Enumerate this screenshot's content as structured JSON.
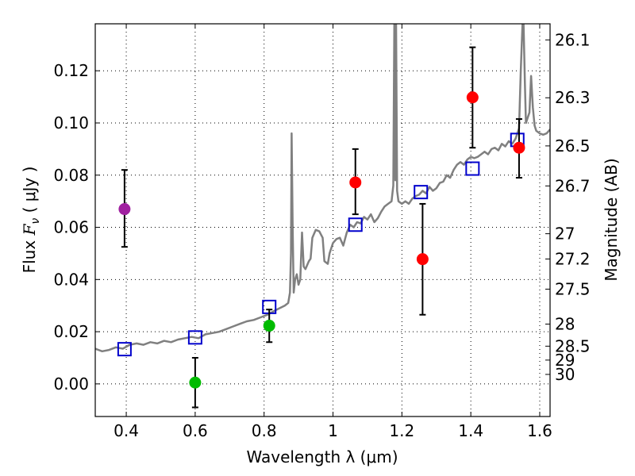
{
  "chart_data": {
    "type": "scatter",
    "title": "",
    "xlabel": "Wavelength  λ (μm)",
    "ylabel": "Flux  F_ν  ( μJy )",
    "ylabel_parts": {
      "prefix": "Flux  ",
      "symbol": "F",
      "subscript": "ν",
      "suffix": "  ( μJy )"
    },
    "y2label": "Magnitude (AB)",
    "xlim": [
      0.31,
      1.63
    ],
    "ylim": [
      -0.0125,
      0.138
    ],
    "grid": true,
    "xticks": [
      {
        "value": 0.4,
        "label": "0.4"
      },
      {
        "value": 0.6,
        "label": "0.6"
      },
      {
        "value": 0.8,
        "label": "0.8"
      },
      {
        "value": 1.0,
        "label": "1"
      },
      {
        "value": 1.2,
        "label": "1.2"
      },
      {
        "value": 1.4,
        "label": "1.4"
      },
      {
        "value": 1.6,
        "label": "1.6"
      }
    ],
    "yticks": [
      {
        "value": 0.0,
        "label": "0.00"
      },
      {
        "value": 0.02,
        "label": "0.02"
      },
      {
        "value": 0.04,
        "label": "0.04"
      },
      {
        "value": 0.06,
        "label": "0.06"
      },
      {
        "value": 0.08,
        "label": "0.08"
      },
      {
        "value": 0.1,
        "label": "0.10"
      },
      {
        "value": 0.12,
        "label": "0.12"
      }
    ],
    "mag_ticks": [
      {
        "mag": 26.1,
        "label": "26.1"
      },
      {
        "mag": 26.3,
        "label": "26.3"
      },
      {
        "mag": 26.5,
        "label": "26.5"
      },
      {
        "mag": 26.7,
        "label": "26.7"
      },
      {
        "mag": 27.0,
        "label": "27"
      },
      {
        "mag": 27.2,
        "label": "27.2"
      },
      {
        "mag": 27.5,
        "label": "27.5"
      },
      {
        "mag": 28.0,
        "label": "28"
      },
      {
        "mag": 28.5,
        "label": "28.5"
      },
      {
        "mag": 29.0,
        "label": "29"
      },
      {
        "mag": 30.0,
        "label": "30"
      }
    ],
    "series": [
      {
        "kind": "line",
        "color": "#808080",
        "points": [
          [
            0.31,
            0.0135
          ],
          [
            0.33,
            0.0125
          ],
          [
            0.35,
            0.013
          ],
          [
            0.37,
            0.014
          ],
          [
            0.39,
            0.0135
          ],
          [
            0.41,
            0.015
          ],
          [
            0.43,
            0.0155
          ],
          [
            0.45,
            0.015
          ],
          [
            0.47,
            0.016
          ],
          [
            0.49,
            0.0155
          ],
          [
            0.51,
            0.0165
          ],
          [
            0.53,
            0.016
          ],
          [
            0.55,
            0.017
          ],
          [
            0.57,
            0.0175
          ],
          [
            0.59,
            0.018
          ],
          [
            0.61,
            0.0175
          ],
          [
            0.63,
            0.019
          ],
          [
            0.65,
            0.0195
          ],
          [
            0.67,
            0.02
          ],
          [
            0.69,
            0.021
          ],
          [
            0.71,
            0.022
          ],
          [
            0.73,
            0.023
          ],
          [
            0.75,
            0.024
          ],
          [
            0.77,
            0.0245
          ],
          [
            0.79,
            0.0255
          ],
          [
            0.81,
            0.0265
          ],
          [
            0.83,
            0.028
          ],
          [
            0.845,
            0.029
          ],
          [
            0.86,
            0.03
          ],
          [
            0.87,
            0.031
          ],
          [
            0.875,
            0.035
          ],
          [
            0.878,
            0.05
          ],
          [
            0.88,
            0.096
          ],
          [
            0.883,
            0.06
          ],
          [
            0.886,
            0.035
          ],
          [
            0.89,
            0.04
          ],
          [
            0.895,
            0.042
          ],
          [
            0.9,
            0.038
          ],
          [
            0.905,
            0.04
          ],
          [
            0.91,
            0.058
          ],
          [
            0.915,
            0.045
          ],
          [
            0.92,
            0.044
          ],
          [
            0.93,
            0.047
          ],
          [
            0.935,
            0.048
          ],
          [
            0.94,
            0.056
          ],
          [
            0.95,
            0.059
          ],
          [
            0.96,
            0.0585
          ],
          [
            0.97,
            0.056
          ],
          [
            0.975,
            0.047
          ],
          [
            0.985,
            0.046
          ],
          [
            0.99,
            0.05
          ],
          [
            1.0,
            0.054
          ],
          [
            1.01,
            0.0555
          ],
          [
            1.02,
            0.056
          ],
          [
            1.03,
            0.053
          ],
          [
            1.04,
            0.058
          ],
          [
            1.05,
            0.061
          ],
          [
            1.06,
            0.06
          ],
          [
            1.07,
            0.062
          ],
          [
            1.08,
            0.0615
          ],
          [
            1.09,
            0.064
          ],
          [
            1.1,
            0.063
          ],
          [
            1.11,
            0.065
          ],
          [
            1.12,
            0.062
          ],
          [
            1.13,
            0.0635
          ],
          [
            1.14,
            0.066
          ],
          [
            1.15,
            0.068
          ],
          [
            1.16,
            0.069
          ],
          [
            1.17,
            0.07
          ],
          [
            1.175,
            0.076
          ],
          [
            1.178,
            0.138
          ],
          [
            1.181,
            0.078
          ],
          [
            1.183,
            0.138
          ],
          [
            1.186,
            0.074
          ],
          [
            1.19,
            0.07
          ],
          [
            1.2,
            0.069
          ],
          [
            1.21,
            0.07
          ],
          [
            1.22,
            0.069
          ],
          [
            1.23,
            0.071
          ],
          [
            1.24,
            0.072
          ],
          [
            1.25,
            0.0725
          ],
          [
            1.26,
            0.074
          ],
          [
            1.27,
            0.073
          ],
          [
            1.28,
            0.0755
          ],
          [
            1.29,
            0.074
          ],
          [
            1.3,
            0.075
          ],
          [
            1.31,
            0.077
          ],
          [
            1.32,
            0.0775
          ],
          [
            1.33,
            0.08
          ],
          [
            1.34,
            0.079
          ],
          [
            1.35,
            0.082
          ],
          [
            1.36,
            0.084
          ],
          [
            1.37,
            0.085
          ],
          [
            1.38,
            0.084
          ],
          [
            1.39,
            0.086
          ],
          [
            1.4,
            0.087
          ],
          [
            1.41,
            0.0865
          ],
          [
            1.42,
            0.087
          ],
          [
            1.43,
            0.088
          ],
          [
            1.44,
            0.089
          ],
          [
            1.45,
            0.088
          ],
          [
            1.46,
            0.09
          ],
          [
            1.47,
            0.0905
          ],
          [
            1.48,
            0.0895
          ],
          [
            1.49,
            0.092
          ],
          [
            1.5,
            0.091
          ],
          [
            1.51,
            0.093
          ],
          [
            1.52,
            0.092
          ],
          [
            1.53,
            0.094
          ],
          [
            1.54,
            0.098
          ],
          [
            1.545,
            0.12
          ],
          [
            1.55,
            0.138
          ],
          [
            1.553,
            0.138
          ],
          [
            1.557,
            0.115
          ],
          [
            1.56,
            0.1
          ],
          [
            1.57,
            0.104
          ],
          [
            1.575,
            0.118
          ],
          [
            1.58,
            0.106
          ],
          [
            1.585,
            0.099
          ],
          [
            1.59,
            0.097
          ],
          [
            1.6,
            0.096
          ],
          [
            1.61,
            0.0955
          ],
          [
            1.62,
            0.096
          ],
          [
            1.63,
            0.0975
          ]
        ]
      },
      {
        "kind": "open-squares",
        "color": "#0000cc",
        "points": [
          [
            0.395,
            0.0133
          ],
          [
            0.6,
            0.0178
          ],
          [
            0.815,
            0.0295
          ],
          [
            1.065,
            0.061
          ],
          [
            1.255,
            0.0735
          ],
          [
            1.405,
            0.0825
          ],
          [
            1.535,
            0.0935
          ]
        ]
      },
      {
        "kind": "errorbar-points",
        "points": [
          {
            "x": 0.395,
            "y": 0.067,
            "yerr_low": 0.0525,
            "yerr_high": 0.082,
            "color": "#a020a0"
          },
          {
            "x": 0.6,
            "y": 0.0005,
            "yerr_low": -0.009,
            "yerr_high": 0.01,
            "color": "#00bb00"
          },
          {
            "x": 0.815,
            "y": 0.0223,
            "yerr_low": 0.016,
            "yerr_high": 0.0285,
            "color": "#00bb00"
          },
          {
            "x": 1.065,
            "y": 0.0772,
            "yerr_low": 0.065,
            "yerr_high": 0.09,
            "color": "#ff0000"
          },
          {
            "x": 1.26,
            "y": 0.0478,
            "yerr_low": 0.0265,
            "yerr_high": 0.069,
            "color": "#ff0000"
          },
          {
            "x": 1.405,
            "y": 0.1098,
            "yerr_low": 0.0905,
            "yerr_high": 0.129,
            "color": "#ff0000"
          },
          {
            "x": 1.54,
            "y": 0.0905,
            "yerr_low": 0.079,
            "yerr_high": 0.1015,
            "color": "#ff0000"
          }
        ]
      }
    ]
  }
}
